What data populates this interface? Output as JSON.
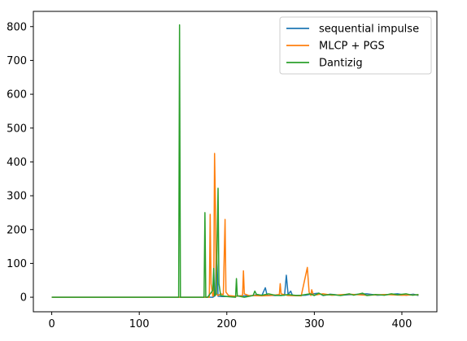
{
  "chart_data": {
    "type": "line",
    "title": "",
    "xlabel": "",
    "ylabel": "",
    "xlim": [
      -21,
      440
    ],
    "ylim": [
      -43,
      845
    ],
    "x_ticks": [
      0,
      100,
      200,
      300,
      400
    ],
    "y_ticks": [
      0,
      100,
      200,
      300,
      400,
      500,
      600,
      700,
      800
    ],
    "grid": false,
    "legend_position": "top-right",
    "series": [
      {
        "name": "sequential impulse",
        "color": "#1f77b4",
        "points": [
          [
            0,
            0
          ],
          [
            100,
            0
          ],
          [
            146,
            0
          ],
          [
            148,
            0
          ],
          [
            176,
            0
          ],
          [
            178,
            0
          ],
          [
            182,
            0
          ],
          [
            184,
            0
          ],
          [
            187,
            5
          ],
          [
            188,
            140
          ],
          [
            189,
            90
          ],
          [
            190,
            3
          ],
          [
            195,
            2
          ],
          [
            210,
            3
          ],
          [
            230,
            5
          ],
          [
            235,
            8
          ],
          [
            240,
            5
          ],
          [
            244,
            28
          ],
          [
            246,
            6
          ],
          [
            255,
            5
          ],
          [
            266,
            6
          ],
          [
            268,
            65
          ],
          [
            270,
            8
          ],
          [
            273,
            18
          ],
          [
            275,
            5
          ],
          [
            290,
            6
          ],
          [
            298,
            10
          ],
          [
            305,
            12
          ],
          [
            310,
            5
          ],
          [
            318,
            9
          ],
          [
            330,
            6
          ],
          [
            345,
            8
          ],
          [
            360,
            10
          ],
          [
            372,
            6
          ],
          [
            385,
            8
          ],
          [
            395,
            10
          ],
          [
            405,
            6
          ],
          [
            413,
            9
          ],
          [
            419,
            5
          ]
        ]
      },
      {
        "name": "MLCP + PGS",
        "color": "#ff7f0e",
        "points": [
          [
            0,
            0
          ],
          [
            100,
            0
          ],
          [
            146,
            0
          ],
          [
            148,
            0
          ],
          [
            180,
            0
          ],
          [
            181,
            245
          ],
          [
            182,
            40
          ],
          [
            184,
            3
          ],
          [
            185,
            5
          ],
          [
            186,
            425
          ],
          [
            187,
            270
          ],
          [
            188,
            10
          ],
          [
            190,
            5
          ],
          [
            193,
            10
          ],
          [
            196,
            8
          ],
          [
            198,
            230
          ],
          [
            199,
            15
          ],
          [
            202,
            5
          ],
          [
            210,
            3
          ],
          [
            218,
            5
          ],
          [
            219,
            78
          ],
          [
            220,
            10
          ],
          [
            225,
            5
          ],
          [
            240,
            4
          ],
          [
            250,
            5
          ],
          [
            260,
            8
          ],
          [
            261,
            40
          ],
          [
            262,
            10
          ],
          [
            270,
            5
          ],
          [
            285,
            4
          ],
          [
            292,
            88
          ],
          [
            294,
            15
          ],
          [
            296,
            5
          ],
          [
            297,
            22
          ],
          [
            299,
            6
          ],
          [
            310,
            10
          ],
          [
            320,
            6
          ],
          [
            340,
            9
          ],
          [
            360,
            6
          ],
          [
            380,
            8
          ],
          [
            400,
            6
          ],
          [
            419,
            7
          ]
        ]
      },
      {
        "name": "Dantizig",
        "color": "#2ca02c",
        "points": [
          [
            0,
            0
          ],
          [
            100,
            0
          ],
          [
            144,
            0
          ],
          [
            145,
            0
          ],
          [
            146,
            805
          ],
          [
            147,
            0
          ],
          [
            150,
            0
          ],
          [
            174,
            0
          ],
          [
            175,
            250
          ],
          [
            176,
            0
          ],
          [
            178,
            0
          ],
          [
            184,
            20
          ],
          [
            185,
            85
          ],
          [
            186,
            5
          ],
          [
            188,
            10
          ],
          [
            190,
            322
          ],
          [
            191,
            40
          ],
          [
            193,
            5
          ],
          [
            200,
            2
          ],
          [
            210,
            0
          ],
          [
            211,
            55
          ],
          [
            212,
            4
          ],
          [
            220,
            0
          ],
          [
            230,
            5
          ],
          [
            232,
            18
          ],
          [
            234,
            8
          ],
          [
            240,
            6
          ],
          [
            248,
            10
          ],
          [
            255,
            6
          ],
          [
            262,
            5
          ],
          [
            270,
            8
          ],
          [
            280,
            5
          ],
          [
            285,
            6
          ],
          [
            295,
            10
          ],
          [
            300,
            5
          ],
          [
            305,
            12
          ],
          [
            310,
            6
          ],
          [
            320,
            8
          ],
          [
            330,
            5
          ],
          [
            340,
            10
          ],
          [
            345,
            6
          ],
          [
            355,
            12
          ],
          [
            360,
            5
          ],
          [
            370,
            8
          ],
          [
            380,
            6
          ],
          [
            388,
            10
          ],
          [
            395,
            7
          ],
          [
            405,
            10
          ],
          [
            412,
            6
          ],
          [
            419,
            8
          ]
        ]
      }
    ]
  }
}
